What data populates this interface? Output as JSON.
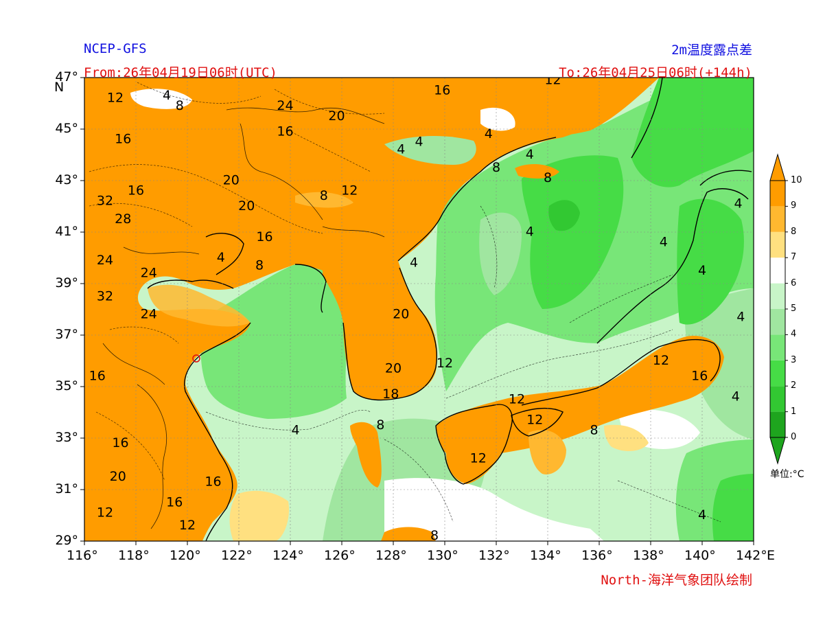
{
  "header": {
    "model": "NCEP-GFS",
    "product": "2m温度露点差",
    "from": "From:26年04月19日06时(UTC)",
    "to": "To:26年04月25日06时(+144h)",
    "credit": "North-海洋气象团队绘制"
  },
  "axes": {
    "lat_labels": [
      "47°",
      "45°",
      "43°",
      "41°",
      "39°",
      "37°",
      "35°",
      "33°",
      "31°",
      "29°"
    ],
    "lat_unit": "N",
    "lon_labels": [
      "116°",
      "118°",
      "120°",
      "122°",
      "124°",
      "126°",
      "128°",
      "130°",
      "132°",
      "134°",
      "136°",
      "138°",
      "140°",
      "142°"
    ],
    "lon_unit": "E",
    "lat_range": [
      29,
      47
    ],
    "lon_range": [
      116,
      142
    ]
  },
  "colorbar": {
    "ticks": [
      "0",
      "1",
      "2",
      "3",
      "4",
      "5",
      "6",
      "7",
      "8",
      "9",
      "10"
    ],
    "colors": [
      "#1ea51e",
      "#32c832",
      "#46dc46",
      "#78e678",
      "#a0e6a0",
      "#c8f5c8",
      "#ffffff",
      "#ffe080",
      "#ffb830",
      "#ff9c00"
    ],
    "unit": "单位:°C"
  },
  "contour_labels": [
    {
      "text": "12",
      "lon": 117.2,
      "lat": 46.2
    },
    {
      "text": "4",
      "lon": 119.2,
      "lat": 46.3
    },
    {
      "text": "8",
      "lon": 119.7,
      "lat": 45.9
    },
    {
      "text": "24",
      "lon": 123.8,
      "lat": 45.9
    },
    {
      "text": "16",
      "lon": 129.9,
      "lat": 46.5
    },
    {
      "text": "12",
      "lon": 134.2,
      "lat": 46.9
    },
    {
      "text": "20",
      "lon": 125.8,
      "lat": 45.5
    },
    {
      "text": "16",
      "lon": 117.5,
      "lat": 44.6
    },
    {
      "text": "16",
      "lon": 123.8,
      "lat": 44.9
    },
    {
      "text": "4",
      "lon": 128.3,
      "lat": 44.2
    },
    {
      "text": "4",
      "lon": 129.0,
      "lat": 44.5
    },
    {
      "text": "4",
      "lon": 131.7,
      "lat": 44.8
    },
    {
      "text": "4",
      "lon": 133.3,
      "lat": 44.0
    },
    {
      "text": "8",
      "lon": 132.0,
      "lat": 43.5
    },
    {
      "text": "8",
      "lon": 134.0,
      "lat": 43.1
    },
    {
      "text": "16",
      "lon": 118.0,
      "lat": 42.6
    },
    {
      "text": "20",
      "lon": 121.7,
      "lat": 43.0
    },
    {
      "text": "12",
      "lon": 126.3,
      "lat": 42.6
    },
    {
      "text": "8",
      "lon": 125.3,
      "lat": 42.4
    },
    {
      "text": "32",
      "lon": 116.8,
      "lat": 42.2
    },
    {
      "text": "20",
      "lon": 122.3,
      "lat": 42.0
    },
    {
      "text": "28",
      "lon": 117.5,
      "lat": 41.5
    },
    {
      "text": "16",
      "lon": 123.0,
      "lat": 40.8
    },
    {
      "text": "24",
      "lon": 116.8,
      "lat": 39.9
    },
    {
      "text": "4",
      "lon": 121.3,
      "lat": 40.0
    },
    {
      "text": "8",
      "lon": 122.8,
      "lat": 39.7
    },
    {
      "text": "24",
      "lon": 118.5,
      "lat": 39.4
    },
    {
      "text": "32",
      "lon": 116.8,
      "lat": 38.5
    },
    {
      "text": "24",
      "lon": 118.5,
      "lat": 37.8
    },
    {
      "text": "20",
      "lon": 128.3,
      "lat": 37.8
    },
    {
      "text": "4",
      "lon": 128.8,
      "lat": 39.8
    },
    {
      "text": "4",
      "lon": 133.3,
      "lat": 41.0
    },
    {
      "text": "4",
      "lon": 138.5,
      "lat": 40.6
    },
    {
      "text": "4",
      "lon": 141.4,
      "lat": 42.1
    },
    {
      "text": "4",
      "lon": 140.0,
      "lat": 39.5
    },
    {
      "text": "4",
      "lon": 141.5,
      "lat": 37.7
    },
    {
      "text": "12",
      "lon": 130.0,
      "lat": 35.9
    },
    {
      "text": "20",
      "lon": 128.0,
      "lat": 35.7
    },
    {
      "text": "12",
      "lon": 138.4,
      "lat": 36.0
    },
    {
      "text": "16",
      "lon": 139.9,
      "lat": 35.4
    },
    {
      "text": "16",
      "lon": 116.5,
      "lat": 35.4
    },
    {
      "text": "18",
      "lon": 127.9,
      "lat": 34.7
    },
    {
      "text": "12",
      "lon": 132.8,
      "lat": 34.5
    },
    {
      "text": "4",
      "lon": 141.3,
      "lat": 34.6
    },
    {
      "text": "12",
      "lon": 133.5,
      "lat": 33.7
    },
    {
      "text": "8",
      "lon": 127.5,
      "lat": 33.5
    },
    {
      "text": "4",
      "lon": 124.2,
      "lat": 33.3
    },
    {
      "text": "8",
      "lon": 135.8,
      "lat": 33.3
    },
    {
      "text": "16",
      "lon": 117.4,
      "lat": 32.8
    },
    {
      "text": "12",
      "lon": 131.3,
      "lat": 32.2
    },
    {
      "text": "20",
      "lon": 117.3,
      "lat": 31.5
    },
    {
      "text": "16",
      "lon": 121.0,
      "lat": 31.3
    },
    {
      "text": "16",
      "lon": 119.5,
      "lat": 30.5
    },
    {
      "text": "12",
      "lon": 116.8,
      "lat": 30.1
    },
    {
      "text": "12",
      "lon": 120.0,
      "lat": 29.6
    },
    {
      "text": "4",
      "lon": 140.0,
      "lat": 30.0
    },
    {
      "text": "8",
      "lon": 129.6,
      "lat": 29.2
    }
  ]
}
